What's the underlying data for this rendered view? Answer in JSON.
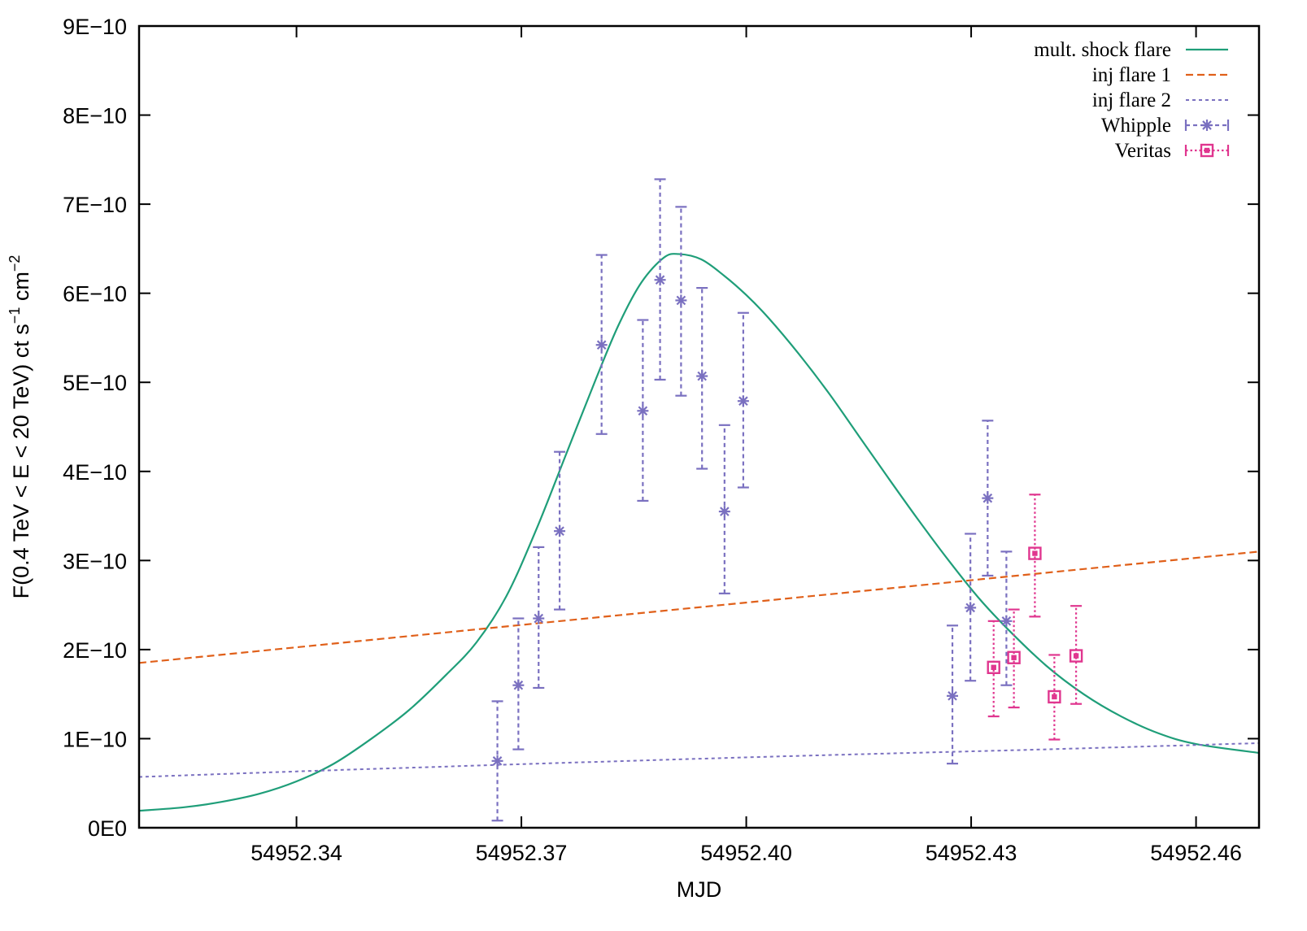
{
  "chart_data": {
    "type": "scatter",
    "xlabel": "MJD",
    "ylabel_parts": {
      "main": "F(0.4 TeV <  E < 20 TeV) ct s",
      "sup1": "−1",
      "mid": " cm",
      "sup2": "−2"
    },
    "xlim": [
      54952.319,
      54952.4684
    ],
    "ylim": [
      0,
      9e-10
    ],
    "x_ticks": [
      {
        "v": 54952.34,
        "label": "54952.34"
      },
      {
        "v": 54952.37,
        "label": "54952.37"
      },
      {
        "v": 54952.4,
        "label": "54952.40"
      },
      {
        "v": 54952.43,
        "label": "54952.43"
      },
      {
        "v": 54952.46,
        "label": "54952.46"
      }
    ],
    "y_ticks": [
      {
        "v": 0,
        "label": "0E0"
      },
      {
        "v": 1e-10,
        "label": "1E−10"
      },
      {
        "v": 2e-10,
        "label": "2E−10"
      },
      {
        "v": 3e-10,
        "label": "3E−10"
      },
      {
        "v": 4e-10,
        "label": "4E−10"
      },
      {
        "v": 5e-10,
        "label": "5E−10"
      },
      {
        "v": 6e-10,
        "label": "6E−10"
      },
      {
        "v": 7e-10,
        "label": "7E−10"
      },
      {
        "v": 8e-10,
        "label": "8E−10"
      },
      {
        "v": 9e-10,
        "label": "9E−10"
      }
    ],
    "grid": false,
    "legend_position": "top-right",
    "colors": {
      "shock": "#1f9e79",
      "inj1": "#e0601a",
      "inj2": "#7a70c0",
      "whipple": "#7a70c0",
      "veritas": "#e0368f"
    },
    "series": [
      {
        "name": "mult. shock flare",
        "kind": "line",
        "style": "solid",
        "points": [
          [
            54952.319,
            1.9e-11
          ],
          [
            54952.325,
            2.3e-11
          ],
          [
            54952.33,
            2.9e-11
          ],
          [
            54952.335,
            3.8e-11
          ],
          [
            54952.34,
            5.2e-11
          ],
          [
            54952.345,
            7.2e-11
          ],
          [
            54952.35,
            1e-10
          ],
          [
            54952.355,
            1.32e-10
          ],
          [
            54952.36,
            1.72e-10
          ],
          [
            54952.364,
            2.08e-10
          ],
          [
            54952.368,
            2.6e-10
          ],
          [
            54952.372,
            3.35e-10
          ],
          [
            54952.376,
            4.2e-10
          ],
          [
            54952.38,
            5.05e-10
          ],
          [
            54952.383,
            5.65e-10
          ],
          [
            54952.386,
            6.12e-10
          ],
          [
            54952.389,
            6.4e-10
          ],
          [
            54952.391,
            6.44e-10
          ],
          [
            54952.394,
            6.38e-10
          ],
          [
            54952.397,
            6.2e-10
          ],
          [
            54952.4,
            5.98e-10
          ],
          [
            54952.403,
            5.72e-10
          ],
          [
            54952.407,
            5.32e-10
          ],
          [
            54952.411,
            4.88e-10
          ],
          [
            54952.415,
            4.4e-10
          ],
          [
            54952.419,
            3.92e-10
          ],
          [
            54952.423,
            3.45e-10
          ],
          [
            54952.427,
            3e-10
          ],
          [
            54952.431,
            2.58e-10
          ],
          [
            54952.435,
            2.22e-10
          ],
          [
            54952.44,
            1.82e-10
          ],
          [
            54952.445,
            1.5e-10
          ],
          [
            54952.45,
            1.25e-10
          ],
          [
            54952.455,
            1.06e-10
          ],
          [
            54952.46,
            9.4e-11
          ],
          [
            54952.4684,
            8.4e-11
          ]
        ]
      },
      {
        "name": "inj flare 1",
        "kind": "line",
        "style": "dashed",
        "points": [
          [
            54952.319,
            1.85e-10
          ],
          [
            54952.4684,
            3.1e-10
          ]
        ]
      },
      {
        "name": "inj flare 2",
        "kind": "line",
        "style": "dotted",
        "points": [
          [
            54952.319,
            5.7e-11
          ],
          [
            54952.35,
            6.6e-11
          ],
          [
            54952.4,
            7.9e-11
          ],
          [
            54952.44,
            8.8e-11
          ],
          [
            54952.4684,
            9.5e-11
          ]
        ]
      },
      {
        "name": "Whipple",
        "kind": "errorbar",
        "marker": "asterisk",
        "points": [
          {
            "x": 54952.3668,
            "y": 7.5e-11,
            "lo": 8e-12,
            "hi": 1.42e-10
          },
          {
            "x": 54952.3696,
            "y": 1.6e-10,
            "lo": 8.8e-11,
            "hi": 2.35e-10
          },
          {
            "x": 54952.3723,
            "y": 2.35e-10,
            "lo": 1.57e-10,
            "hi": 3.15e-10
          },
          {
            "x": 54952.3751,
            "y": 3.33e-10,
            "lo": 2.45e-10,
            "hi": 4.22e-10
          },
          {
            "x": 54952.3807,
            "y": 5.42e-10,
            "lo": 4.42e-10,
            "hi": 6.43e-10
          },
          {
            "x": 54952.3862,
            "y": 4.68e-10,
            "lo": 3.67e-10,
            "hi": 5.7e-10
          },
          {
            "x": 54952.3885,
            "y": 6.15e-10,
            "lo": 5.03e-10,
            "hi": 7.28e-10
          },
          {
            "x": 54952.3913,
            "y": 5.92e-10,
            "lo": 4.85e-10,
            "hi": 6.97e-10
          },
          {
            "x": 54952.3941,
            "y": 5.07e-10,
            "lo": 4.03e-10,
            "hi": 6.06e-10
          },
          {
            "x": 54952.3971,
            "y": 3.55e-10,
            "lo": 2.63e-10,
            "hi": 4.52e-10
          },
          {
            "x": 54952.3996,
            "y": 4.79e-10,
            "lo": 3.82e-10,
            "hi": 5.78e-10
          },
          {
            "x": 54952.4275,
            "y": 1.48e-10,
            "lo": 7.2e-11,
            "hi": 2.27e-10
          },
          {
            "x": 54952.4299,
            "y": 2.47e-10,
            "lo": 1.65e-10,
            "hi": 3.3e-10
          },
          {
            "x": 54952.4322,
            "y": 3.7e-10,
            "lo": 2.83e-10,
            "hi": 4.57e-10
          },
          {
            "x": 54952.4347,
            "y": 2.32e-10,
            "lo": 1.6e-10,
            "hi": 3.1e-10
          }
        ]
      },
      {
        "name": "Veritas",
        "kind": "errorbar",
        "marker": "square",
        "points": [
          {
            "x": 54952.433,
            "y": 1.8e-10,
            "lo": 1.25e-10,
            "hi": 2.32e-10
          },
          {
            "x": 54952.4357,
            "y": 1.91e-10,
            "lo": 1.35e-10,
            "hi": 2.45e-10
          },
          {
            "x": 54952.4385,
            "y": 3.08e-10,
            "lo": 2.37e-10,
            "hi": 3.74e-10
          },
          {
            "x": 54952.4411,
            "y": 1.47e-10,
            "lo": 9.9e-11,
            "hi": 1.94e-10
          },
          {
            "x": 54952.444,
            "y": 1.93e-10,
            "lo": 1.39e-10,
            "hi": 2.49e-10
          }
        ]
      }
    ]
  }
}
